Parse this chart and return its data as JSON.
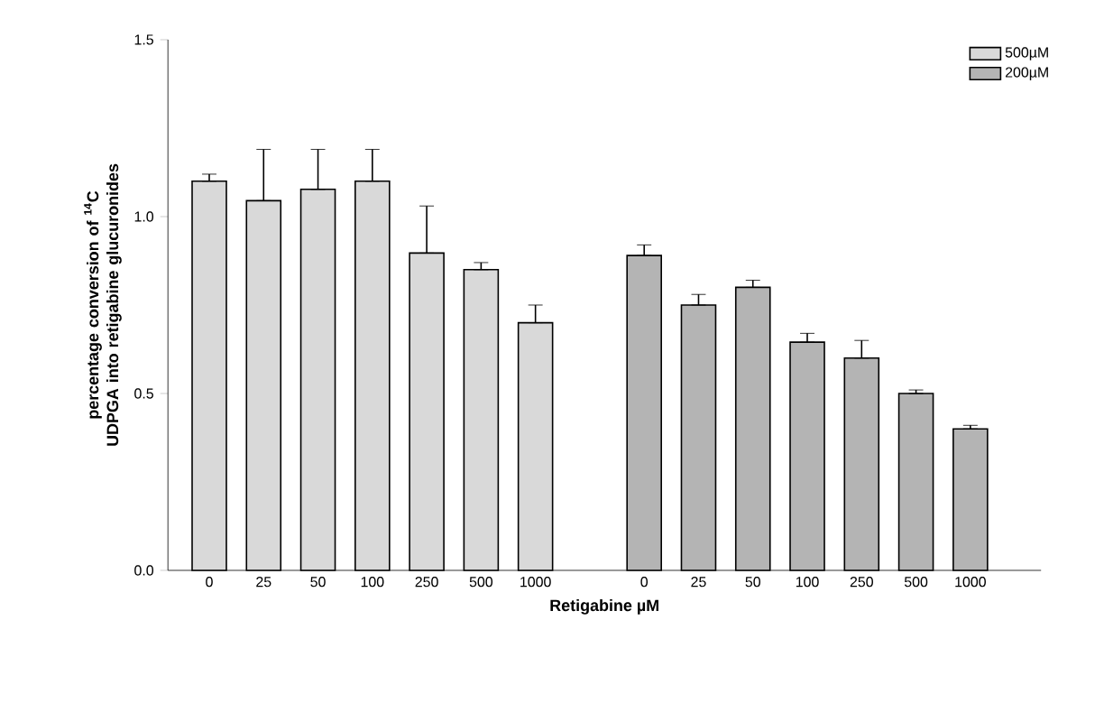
{
  "chart_data": {
    "type": "bar",
    "xlabel": "Retigabine µM",
    "ylabel": "percentage conversion of $^{14}$C UDPGA into retigabine glucuronides",
    "categories": [
      "0",
      "25",
      "50",
      "100",
      "250",
      "500",
      "1000",
      null,
      "0",
      "25",
      "50",
      "100",
      "250",
      "500",
      "1000"
    ],
    "ylim": [
      0,
      1.5
    ],
    "yticks": [
      {
        "value": 0,
        "label": "0.0"
      },
      {
        "value": 0.5,
        "label": "0.5"
      },
      {
        "value": 1,
        "label": "1.0"
      },
      {
        "value": 1.5,
        "label": "1.5"
      }
    ],
    "legend": "top right",
    "series": [
      {
        "name": "500µM",
        "color": "#d9d9d9",
        "values": [
          1.1,
          1.045,
          1.077,
          1.1,
          0.897,
          0.85,
          0.7,
          null,
          null,
          null,
          null,
          null,
          null,
          null,
          null
        ],
        "errors": [
          [
            1.1,
            1.12
          ],
          [
            1.045,
            1.19
          ],
          [
            1.077,
            1.19
          ],
          [
            1.1,
            1.19
          ],
          [
            0.897,
            1.03
          ],
          [
            0.85,
            0.87
          ],
          [
            0.7,
            0.75
          ],
          null,
          null,
          null,
          null,
          null,
          null,
          null,
          null
        ]
      },
      {
        "name": "200µM",
        "color": "#b4b4b4",
        "values": [
          null,
          null,
          null,
          null,
          null,
          null,
          null,
          null,
          0.89,
          0.75,
          0.8,
          0.645,
          0.6,
          0.5,
          0.4
        ],
        "errors": [
          null,
          null,
          null,
          null,
          null,
          null,
          null,
          null,
          [
            0.89,
            0.92
          ],
          [
            0.75,
            0.78
          ],
          [
            0.8,
            0.82
          ],
          [
            0.645,
            0.67
          ],
          [
            0.6,
            0.65
          ],
          [
            0.5,
            0.51
          ],
          [
            0.4,
            0.41
          ]
        ]
      }
    ]
  }
}
